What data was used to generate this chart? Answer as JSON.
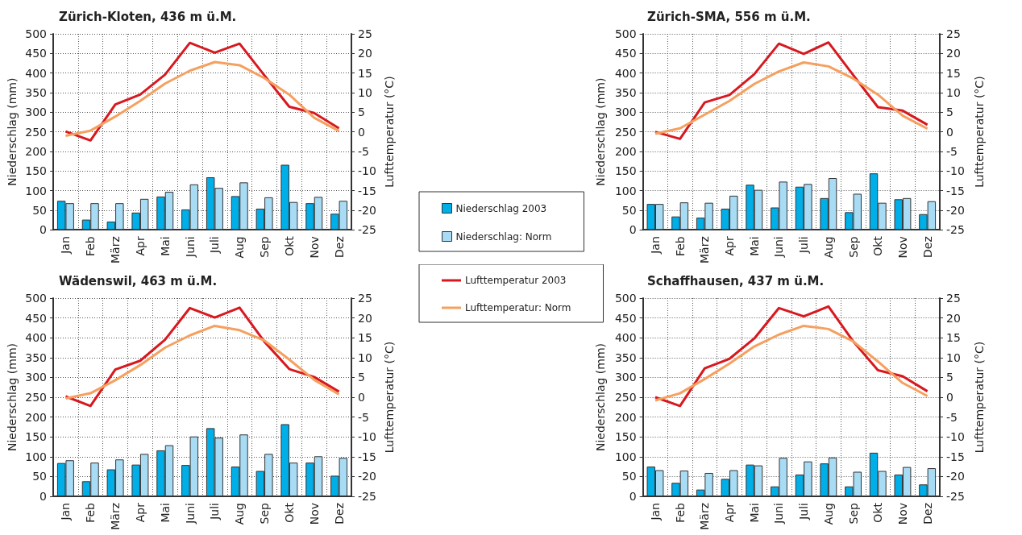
{
  "chart_data": [
    {
      "type": "bar",
      "title": "Zürich-Kloten, 436 m ü.M.",
      "ylabel": "Niederschlag (mm)",
      "y2label": "Lufttemperatur (°C)",
      "categories": [
        "Jan",
        "Feb",
        "März",
        "Apr",
        "Mai",
        "Juni",
        "Juli",
        "Aug",
        "Sep",
        "Okt",
        "Nov",
        "Dez"
      ],
      "ylim": [
        0,
        500
      ],
      "yticks": [
        0,
        50,
        100,
        150,
        200,
        250,
        300,
        350,
        400,
        450,
        500
      ],
      "y2lim": [
        -25,
        25
      ],
      "y2ticks": [
        -25,
        -20,
        -15,
        -10,
        -5,
        0,
        5,
        10,
        15,
        20,
        25
      ],
      "grid": true,
      "legend": "right",
      "marker": "none",
      "series": [
        {
          "name": "Niederschlag 2003",
          "color": "#00aee8",
          "values": [
            74,
            26,
            21,
            44,
            85,
            52,
            134,
            86,
            54,
            166,
            68,
            41
          ]
        },
        {
          "name": "Niederschlag: Norm",
          "color": "#a8dcf5",
          "values": [
            68,
            68,
            68,
            79,
            97,
            116,
            107,
            121,
            83,
            71,
            84,
            74
          ]
        },
        {
          "type": "line",
          "axis": "y2",
          "color": "#d7191f",
          "values": [
            0.1,
            -2.2,
            7,
            9.5,
            14.6,
            22.7,
            20.2,
            22.5,
            14.4,
            6.4,
            4.8,
            0.9
          ]
        },
        {
          "type": "line",
          "axis": "y2",
          "color": "#f5a05f",
          "values": [
            -1,
            0.3,
            3.9,
            7.9,
            12.3,
            15.6,
            17.8,
            17,
            13.7,
            9.5,
            3.6,
            0.2
          ]
        }
      ]
    },
    {
      "type": "bar",
      "title": "Zürich-SMA, 556 m ü.M.",
      "ylabel": "Niederschlag (mm)",
      "y2label": "Lufttemperatur (°C)",
      "categories": [
        "Jan",
        "Feb",
        "März",
        "Apr",
        "Mai",
        "Juni",
        "Juli",
        "Aug",
        "Sep",
        "Okt",
        "Nov",
        "Dez"
      ],
      "ylim": [
        0,
        500
      ],
      "yticks": [
        0,
        50,
        100,
        150,
        200,
        250,
        300,
        350,
        400,
        450,
        500
      ],
      "y2lim": [
        -25,
        25
      ],
      "y2ticks": [
        -25,
        -20,
        -15,
        -10,
        -5,
        0,
        5,
        10,
        15,
        20,
        25
      ],
      "grid": true,
      "marker": "none",
      "series": [
        {
          "color": "#00aee8",
          "values": [
            66,
            34,
            31,
            54,
            115,
            57,
            110,
            81,
            45,
            144,
            78,
            40
          ]
        },
        {
          "color": "#a8dcf5",
          "values": [
            66,
            70,
            69,
            87,
            102,
            123,
            117,
            132,
            92,
            69,
            81,
            73
          ]
        },
        {
          "type": "line",
          "axis": "y2",
          "color": "#d7191f",
          "values": [
            0,
            -1.8,
            7.5,
            9.4,
            14.7,
            22.5,
            19.9,
            22.8,
            14.5,
            6.3,
            5.4,
            1.8
          ]
        },
        {
          "type": "line",
          "axis": "y2",
          "color": "#f5a05f",
          "values": [
            -0.5,
            0.9,
            4.4,
            7.9,
            12.2,
            15.4,
            17.7,
            16.7,
            13.6,
            9.5,
            4.1,
            0.8
          ]
        }
      ]
    },
    {
      "type": "bar",
      "title": "Wädenswil, 463 m ü.M.",
      "ylabel": "Niederschlag (mm)",
      "y2label": "Lufttemperatur (°C)",
      "categories": [
        "Jan",
        "Feb",
        "März",
        "Apr",
        "Mai",
        "Juni",
        "Juli",
        "Aug",
        "Sep",
        "Okt",
        "Nov",
        "Dez"
      ],
      "ylim": [
        0,
        500
      ],
      "yticks": [
        0,
        50,
        100,
        150,
        200,
        250,
        300,
        350,
        400,
        450,
        500
      ],
      "y2lim": [
        -25,
        25
      ],
      "y2ticks": [
        -25,
        -20,
        -15,
        -10,
        -5,
        0,
        5,
        10,
        15,
        20,
        25
      ],
      "grid": true,
      "legend": "right",
      "marker": "none",
      "series": [
        {
          "color": "#00aee8",
          "values": [
            84,
            38,
            68,
            80,
            116,
            79,
            172,
            75,
            64,
            182,
            85,
            52
          ]
        },
        {
          "color": "#a8dcf5",
          "values": [
            91,
            85,
            93,
            107,
            129,
            151,
            148,
            156,
            107,
            85,
            101,
            97
          ]
        },
        {
          "name": "Lufttemperatur 2003",
          "type": "line",
          "axis": "y2",
          "color": "#d7191f",
          "values": [
            0.2,
            -2.2,
            7,
            9.2,
            14.5,
            22.5,
            20.1,
            22.6,
            14,
            7.1,
            5.1,
            1.4
          ]
        },
        {
          "name": "Lufttemperatur: Norm",
          "type": "line",
          "axis": "y2",
          "color": "#f5a05f",
          "values": [
            -0.3,
            1,
            4.3,
            8.1,
            12.5,
            15.6,
            18,
            16.9,
            14.3,
            9.5,
            4.4,
            0.7
          ]
        }
      ]
    },
    {
      "type": "bar",
      "title": "Schaffhausen, 437 m ü.M.",
      "ylabel": "Niederschlag (mm)",
      "y2label": "Lufttemperatur (°C)",
      "categories": [
        "Jan",
        "Feb",
        "März",
        "Apr",
        "Mai",
        "Juni",
        "Juli",
        "Aug",
        "Sep",
        "Okt",
        "Nov",
        "Dez"
      ],
      "ylim": [
        0,
        500
      ],
      "yticks": [
        0,
        50,
        100,
        150,
        200,
        250,
        300,
        350,
        400,
        450,
        500
      ],
      "y2lim": [
        -25,
        25
      ],
      "y2ticks": [
        -25,
        -20,
        -15,
        -10,
        -5,
        0,
        5,
        10,
        15,
        20,
        25
      ],
      "grid": true,
      "marker": "none",
      "series": [
        {
          "color": "#00aee8",
          "values": [
            75,
            34,
            17,
            44,
            80,
            25,
            55,
            83,
            25,
            110,
            55,
            30
          ]
        },
        {
          "color": "#a8dcf5",
          "values": [
            66,
            65,
            59,
            66,
            78,
            97,
            88,
            98,
            62,
            64,
            74,
            71
          ]
        },
        {
          "type": "line",
          "axis": "y2",
          "color": "#d7191f",
          "values": [
            0,
            -2.2,
            7.3,
            9.7,
            14.8,
            22.5,
            20.4,
            22.9,
            14.1,
            6.8,
            5.3,
            1.5
          ]
        },
        {
          "type": "line",
          "axis": "y2",
          "color": "#f5a05f",
          "values": [
            -0.8,
            1,
            4.6,
            8.5,
            12.8,
            15.8,
            18,
            17.2,
            14.1,
            9,
            3.6,
            0.3
          ]
        }
      ]
    }
  ]
}
